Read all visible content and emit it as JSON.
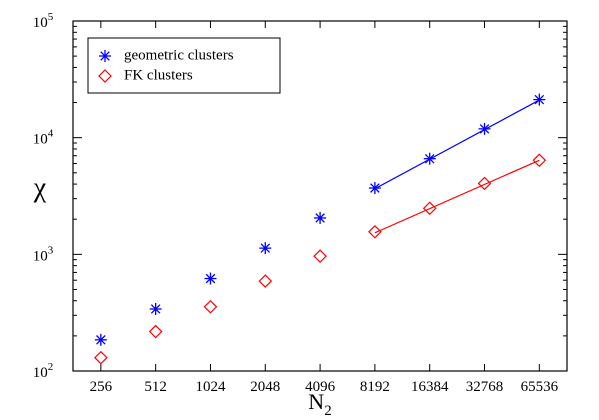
{
  "chart_data": {
    "type": "scatter",
    "title": "",
    "xlabel": "N",
    "xlabel_subscript": "2",
    "ylabel": "χ",
    "x_scale": "log2",
    "y_scale": "log",
    "xlim": [
      180,
      93000
    ],
    "ylim": [
      100,
      100000
    ],
    "x_ticks": [
      "256",
      "512",
      "1024",
      "2048",
      "4096",
      "8192",
      "16384",
      "32768",
      "65536"
    ],
    "y_ticks": [
      {
        "value": 100,
        "base": "10",
        "exp": "2"
      },
      {
        "value": 1000,
        "base": "10",
        "exp": "3"
      },
      {
        "value": 10000,
        "base": "10",
        "exp": "4"
      },
      {
        "value": 100000,
        "base": "10",
        "exp": "5"
      }
    ],
    "grid": false,
    "legend_position": "top-left",
    "series": [
      {
        "name": "geometric clusters",
        "color": "#0000ff",
        "marker": "asterisk",
        "x": [
          256,
          512,
          1024,
          2048,
          4096,
          8192,
          16384,
          32768,
          65536
        ],
        "y": [
          185,
          340,
          620,
          1130,
          2050,
          3700,
          6600,
          11900,
          21200
        ],
        "fit_line": {
          "x": [
            8192,
            65536
          ],
          "y": [
            3650,
            21000
          ]
        }
      },
      {
        "name": "FK clusters",
        "color": "#ff0000",
        "marker": "diamond",
        "x": [
          256,
          512,
          1024,
          2048,
          4096,
          8192,
          16384,
          32768,
          65536
        ],
        "y": [
          130,
          218,
          355,
          590,
          965,
          1560,
          2480,
          4050,
          6400
        ],
        "fit_line": {
          "x": [
            8192,
            65536
          ],
          "y": [
            1530,
            6400
          ]
        }
      }
    ]
  }
}
